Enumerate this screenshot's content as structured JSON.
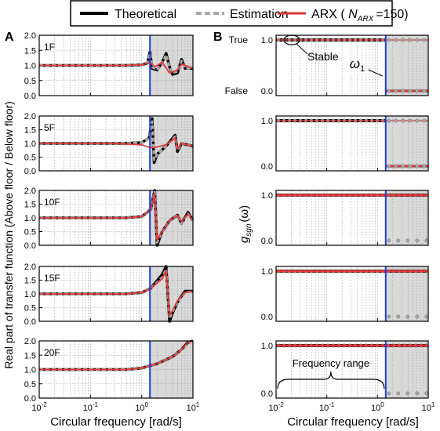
{
  "legend": {
    "items": [
      {
        "label": "Theoretical",
        "color": "#000000",
        "style": "solid"
      },
      {
        "label": "Estimation",
        "color": "#a8a8a8",
        "style": "dashed"
      },
      {
        "label": "ARX ( N_ARX =150)",
        "prefix": "ARX (",
        "symbol": "N",
        "subscript": "ARX",
        "suffix": "=150)",
        "color": "#e0383a",
        "style": "solid"
      }
    ]
  },
  "colors": {
    "theoretical": "#000000",
    "estimation": "#a8a8a8",
    "arx": "#e0383a",
    "marker_line": "#1f3fd6",
    "shade": "#d9d9d9"
  },
  "chart_data": [
    {
      "panel": "A",
      "type": "line",
      "ylabel": "Real part of transfer function  (Above floor / Below floor)",
      "xlabel": "Circular frequency [rad/s]",
      "xscale": "log",
      "xlim": [
        0.01,
        10
      ],
      "xticks": [
        "10^-2",
        "10^-1",
        "10^0",
        "10^1"
      ],
      "ylim": [
        0,
        2
      ],
      "yticks": [
        "0.0",
        "0.5",
        "1.0",
        "1.5",
        "2.0"
      ],
      "grid": true,
      "shaded_from_x": 1.45,
      "marker_x": 1.45,
      "subplots": [
        {
          "label": "1F",
          "theoretical": [
            [
              0.01,
              1.0
            ],
            [
              0.5,
              1.0
            ],
            [
              1.0,
              1.02
            ],
            [
              1.3,
              1.08
            ],
            [
              1.45,
              1.45
            ],
            [
              1.6,
              0.9
            ],
            [
              2.0,
              0.85
            ],
            [
              2.5,
              1.1
            ],
            [
              3.0,
              1.4
            ],
            [
              3.5,
              0.95
            ],
            [
              4.0,
              0.7
            ],
            [
              5.0,
              0.75
            ],
            [
              6.0,
              1.2
            ],
            [
              7.0,
              0.9
            ],
            [
              10.0,
              0.9
            ]
          ],
          "estimation": [
            [
              0.01,
              1.0
            ],
            [
              0.5,
              1.0
            ],
            [
              1.0,
              1.02
            ],
            [
              1.3,
              1.1
            ],
            [
              1.45,
              1.4
            ],
            [
              1.6,
              0.95
            ],
            [
              2.0,
              0.85
            ],
            [
              2.5,
              1.1
            ],
            [
              3.0,
              1.35
            ],
            [
              3.5,
              0.95
            ],
            [
              4.0,
              0.75
            ],
            [
              5.0,
              0.8
            ],
            [
              6.0,
              1.15
            ],
            [
              7.0,
              0.9
            ],
            [
              10.0,
              0.9
            ]
          ],
          "arx": [
            [
              0.01,
              1.0
            ],
            [
              0.5,
              1.0
            ],
            [
              1.0,
              1.02
            ],
            [
              1.45,
              1.1
            ],
            [
              1.8,
              0.95
            ],
            [
              2.5,
              1.1
            ],
            [
              3.5,
              0.75
            ],
            [
              5.0,
              0.85
            ],
            [
              6.0,
              1.05
            ],
            [
              10.0,
              0.9
            ]
          ]
        },
        {
          "label": "5F",
          "theoretical": [
            [
              0.01,
              1.0
            ],
            [
              0.5,
              1.0
            ],
            [
              1.0,
              1.03
            ],
            [
              1.4,
              1.2
            ],
            [
              1.6,
              1.9
            ],
            [
              1.75,
              0.3
            ],
            [
              2.0,
              0.6
            ],
            [
              3.0,
              0.9
            ],
            [
              4.5,
              1.3
            ],
            [
              5.0,
              0.7
            ],
            [
              6.0,
              1.0
            ],
            [
              10.0,
              0.9
            ]
          ],
          "estimation": [
            [
              0.01,
              1.0
            ],
            [
              0.5,
              1.0
            ],
            [
              1.0,
              1.03
            ],
            [
              1.4,
              1.2
            ],
            [
              1.6,
              1.8
            ],
            [
              1.75,
              0.4
            ],
            [
              2.0,
              0.6
            ],
            [
              3.0,
              0.9
            ],
            [
              4.5,
              1.25
            ],
            [
              5.0,
              0.75
            ],
            [
              6.0,
              1.0
            ],
            [
              10.0,
              0.9
            ]
          ],
          "arx": [
            [
              0.01,
              1.0
            ],
            [
              0.3,
              1.0
            ],
            [
              1.0,
              0.95
            ],
            [
              1.45,
              0.85
            ],
            [
              1.8,
              0.85
            ],
            [
              3.0,
              0.95
            ],
            [
              4.5,
              1.2
            ],
            [
              5.0,
              0.8
            ],
            [
              6.0,
              1.0
            ],
            [
              10.0,
              0.9
            ]
          ]
        },
        {
          "label": "10F",
          "theoretical": [
            [
              0.01,
              1.0
            ],
            [
              0.5,
              1.0
            ],
            [
              1.0,
              1.05
            ],
            [
              1.5,
              1.3
            ],
            [
              1.8,
              2.0
            ],
            [
              2.0,
              0.0
            ],
            [
              2.5,
              0.5
            ],
            [
              3.5,
              0.9
            ],
            [
              5.0,
              1.1
            ],
            [
              6.0,
              0.8
            ],
            [
              8.0,
              1.2
            ],
            [
              10.0,
              0.9
            ]
          ],
          "estimation": [
            [
              0.01,
              1.0
            ],
            [
              0.5,
              1.0
            ],
            [
              1.0,
              1.05
            ],
            [
              1.5,
              1.3
            ],
            [
              1.8,
              1.95
            ],
            [
              2.0,
              0.1
            ],
            [
              2.5,
              0.5
            ],
            [
              3.5,
              0.9
            ],
            [
              5.0,
              1.1
            ],
            [
              6.0,
              0.8
            ],
            [
              8.0,
              1.15
            ],
            [
              10.0,
              0.9
            ]
          ],
          "arx": [
            [
              0.01,
              1.0
            ],
            [
              0.5,
              1.0
            ],
            [
              1.0,
              1.05
            ],
            [
              1.5,
              1.3
            ],
            [
              1.8,
              1.9
            ],
            [
              2.0,
              0.2
            ],
            [
              2.5,
              0.5
            ],
            [
              3.5,
              0.9
            ],
            [
              5.0,
              1.1
            ],
            [
              6.0,
              0.85
            ],
            [
              8.0,
              1.15
            ],
            [
              10.0,
              0.9
            ]
          ]
        },
        {
          "label": "15F",
          "theoretical": [
            [
              0.01,
              1.0
            ],
            [
              0.5,
              1.0
            ],
            [
              1.0,
              1.05
            ],
            [
              1.5,
              1.2
            ],
            [
              2.5,
              1.7
            ],
            [
              3.0,
              2.0
            ],
            [
              3.5,
              0.0
            ],
            [
              4.0,
              0.3
            ],
            [
              5.0,
              0.7
            ],
            [
              7.0,
              1.1
            ],
            [
              10.0,
              1.1
            ]
          ],
          "estimation": [
            [
              0.01,
              1.0
            ],
            [
              0.5,
              1.0
            ],
            [
              1.0,
              1.05
            ],
            [
              1.5,
              1.2
            ],
            [
              2.5,
              1.6
            ],
            [
              3.0,
              1.9
            ],
            [
              3.5,
              0.1
            ],
            [
              4.0,
              0.35
            ],
            [
              5.0,
              0.7
            ],
            [
              7.0,
              1.05
            ],
            [
              10.0,
              1.1
            ]
          ],
          "arx": [
            [
              0.01,
              1.0
            ],
            [
              0.5,
              1.0
            ],
            [
              1.0,
              1.05
            ],
            [
              1.5,
              1.2
            ],
            [
              2.5,
              1.55
            ],
            [
              3.0,
              1.85
            ],
            [
              3.5,
              0.2
            ],
            [
              4.0,
              0.4
            ],
            [
              5.0,
              0.75
            ],
            [
              7.0,
              1.05
            ],
            [
              10.0,
              1.1
            ]
          ]
        },
        {
          "label": "20F",
          "theoretical": [
            [
              0.01,
              1.0
            ],
            [
              0.5,
              1.0
            ],
            [
              1.0,
              1.05
            ],
            [
              2.0,
              1.2
            ],
            [
              4.0,
              1.45
            ],
            [
              6.0,
              1.7
            ],
            [
              8.0,
              1.95
            ],
            [
              10.0,
              2.0
            ]
          ],
          "estimation": [
            [
              0.01,
              1.0
            ],
            [
              0.5,
              1.0
            ],
            [
              1.0,
              1.05
            ],
            [
              2.0,
              1.2
            ],
            [
              4.0,
              1.45
            ],
            [
              6.0,
              1.7
            ],
            [
              8.0,
              1.9
            ],
            [
              10.0,
              2.0
            ]
          ],
          "arx": [
            [
              0.01,
              1.0
            ],
            [
              0.5,
              1.0
            ],
            [
              1.0,
              1.05
            ],
            [
              2.0,
              1.2
            ],
            [
              4.0,
              1.45
            ],
            [
              6.0,
              1.7
            ],
            [
              8.0,
              1.95
            ],
            [
              10.0,
              2.0
            ]
          ]
        }
      ]
    },
    {
      "panel": "B",
      "type": "scatter",
      "ylabel_symbol": "g",
      "ylabel_subscript": "sgn",
      "ylabel_arg": "(ω)",
      "xlabel": "Circular frequency [rad/s]",
      "xscale": "log",
      "xlim": [
        0.01,
        10
      ],
      "xticks": [
        "10^-2",
        "10^-1",
        "10^0",
        "10^1"
      ],
      "ylim": [
        0,
        1
      ],
      "yticks": [
        "0.0",
        "1.0"
      ],
      "top_panel_yticks": [
        "False",
        "True"
      ],
      "grid": true,
      "shaded_from_x": 1.45,
      "marker_x": 1.45,
      "annotations": {
        "stable": "Stable",
        "omega": "ω",
        "omega_sub": "1",
        "frequency_range": "Frequency range"
      },
      "subplots": [
        {
          "label": "1F",
          "true_until": 1.45,
          "switch_x": 1.45
        },
        {
          "label": "5F",
          "true_until": 1.45,
          "switch_x": 1.45
        },
        {
          "label": "10F",
          "true_until": 10,
          "switch_x": 10
        },
        {
          "label": "15F",
          "true_until": 10,
          "switch_x": 10
        },
        {
          "label": "20F",
          "true_until": 10,
          "switch_x": 10
        }
      ]
    }
  ],
  "panel_labels": {
    "a": "A",
    "b": "B"
  }
}
